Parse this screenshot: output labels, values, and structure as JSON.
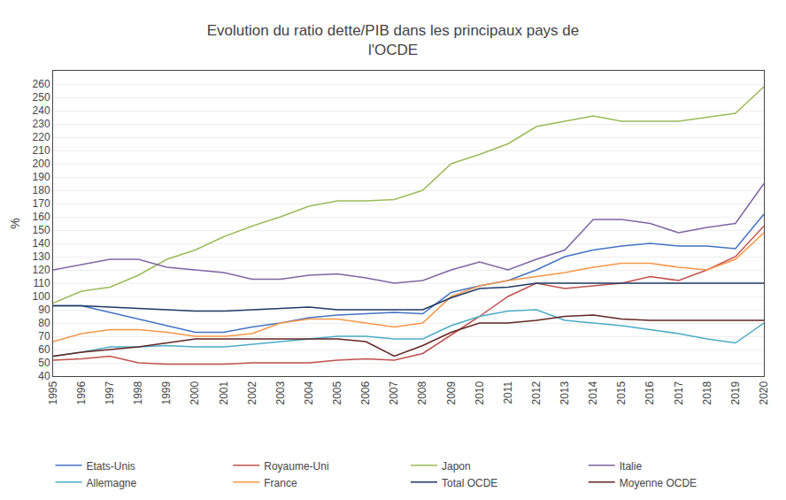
{
  "chart_data": {
    "type": "line",
    "title": "Evolution du ratio dette/PIB dans les principaux pays de\nl'OCDE",
    "ylabel": "%",
    "x": [
      1995,
      1996,
      1997,
      1998,
      1999,
      2000,
      2001,
      2002,
      2003,
      2004,
      2005,
      2006,
      2007,
      2008,
      2009,
      2010,
      2011,
      2012,
      2013,
      2014,
      2015,
      2016,
      2017,
      2018,
      2019,
      2020
    ],
    "series": [
      {
        "name": "Etats-Unis",
        "color": "#4472C4",
        "values": [
          93,
          93,
          88,
          83,
          78,
          73,
          73,
          77,
          80,
          84,
          86,
          87,
          88,
          87,
          103,
          108,
          112,
          120,
          130,
          135,
          138,
          140,
          138,
          138,
          136,
          162
        ]
      },
      {
        "name": "Royaume-Uni",
        "color": "#C0504D",
        "values": [
          52,
          53,
          55,
          50,
          49,
          49,
          49,
          50,
          50,
          50,
          52,
          53,
          52,
          57,
          71,
          85,
          100,
          110,
          106,
          108,
          110,
          115,
          112,
          120,
          130,
          153
        ]
      },
      {
        "name": "Japon",
        "color": "#9BBB59",
        "values": [
          95,
          104,
          107,
          116,
          128,
          135,
          145,
          153,
          160,
          168,
          172,
          172,
          173,
          180,
          200,
          207,
          215,
          228,
          232,
          236,
          232,
          232,
          232,
          235,
          238,
          258
        ]
      },
      {
        "name": "Italie",
        "color": "#8064A2",
        "values": [
          120,
          124,
          128,
          128,
          122,
          120,
          118,
          113,
          113,
          116,
          117,
          114,
          110,
          112,
          120,
          126,
          120,
          128,
          135,
          158,
          158,
          155,
          148,
          152,
          155,
          185
        ]
      },
      {
        "name": "Allemagne",
        "color": "#4BACC6",
        "values": [
          55,
          58,
          62,
          62,
          63,
          62,
          62,
          64,
          66,
          68,
          70,
          70,
          68,
          68,
          78,
          85,
          89,
          90,
          82,
          80,
          78,
          75,
          72,
          68,
          65,
          80
        ]
      },
      {
        "name": "France",
        "color": "#F79646",
        "values": [
          66,
          72,
          75,
          75,
          73,
          70,
          70,
          72,
          80,
          83,
          83,
          80,
          77,
          80,
          100,
          108,
          112,
          115,
          118,
          122,
          125,
          125,
          122,
          120,
          128,
          148
        ]
      },
      {
        "name": "Total OCDE",
        "color": "#1F3864",
        "values": [
          93,
          93,
          92,
          91,
          90,
          89,
          89,
          90,
          91,
          92,
          90,
          90,
          90,
          90,
          99,
          106,
          107,
          110,
          110,
          110,
          110,
          110,
          110,
          110,
          110,
          110
        ]
      },
      {
        "name": "Moyenne OCDE",
        "color": "#632523",
        "values": [
          55,
          58,
          60,
          62,
          65,
          68,
          68,
          68,
          68,
          68,
          68,
          66,
          55,
          63,
          73,
          80,
          80,
          82,
          85,
          86,
          83,
          82,
          82,
          82,
          82,
          82
        ]
      }
    ],
    "xlim": [
      1995,
      2020
    ],
    "xticks": [
      1995,
      1996,
      1997,
      1998,
      1999,
      2000,
      2001,
      2002,
      2003,
      2004,
      2005,
      2006,
      2007,
      2008,
      2009,
      2010,
      2011,
      2012,
      2013,
      2014,
      2015,
      2016,
      2017,
      2018,
      2019,
      2020
    ],
    "ylim": [
      40,
      270
    ],
    "yticks": [
      40,
      50,
      60,
      70,
      80,
      90,
      100,
      110,
      120,
      130,
      140,
      150,
      160,
      170,
      180,
      190,
      200,
      210,
      220,
      230,
      240,
      250,
      260
    ],
    "grid": "y",
    "legend": "bottom"
  }
}
